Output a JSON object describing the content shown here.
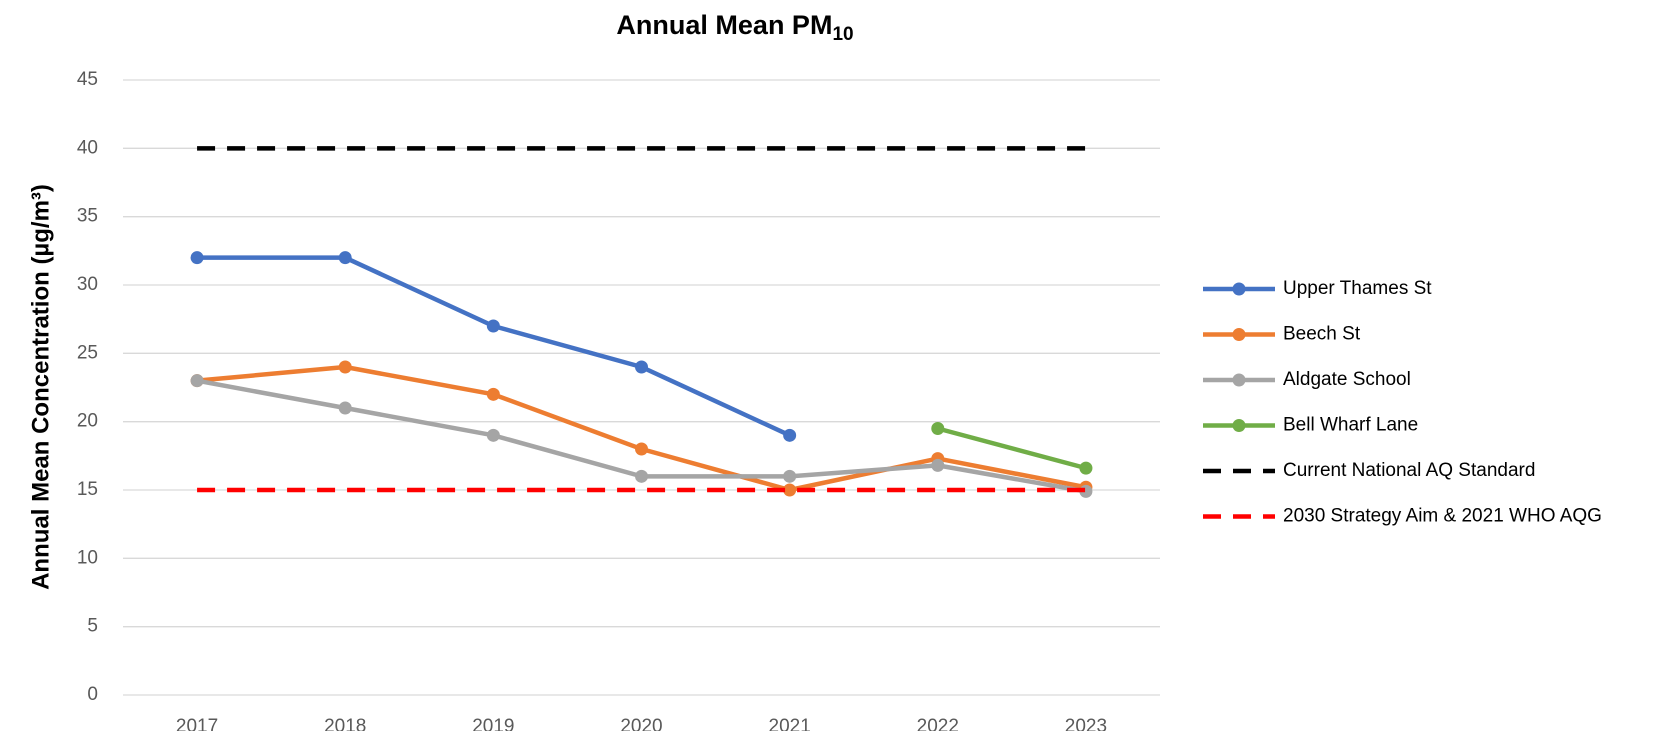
{
  "chart_data": {
    "type": "line",
    "title": "Annual Mean PM",
    "title_subscript": "10",
    "y_label": "Annual Mean Concentration (µg/m³)",
    "categories": [
      "2017",
      "2018",
      "2019",
      "2020",
      "2021",
      "2022",
      "2023"
    ],
    "series": [
      {
        "name": "Upper Thames St",
        "color": "#4472c4",
        "values": [
          32,
          32,
          27,
          24,
          19,
          null,
          null
        ]
      },
      {
        "name": "Beech St",
        "color": "#ed7d31",
        "values": [
          23,
          24,
          22,
          18,
          15,
          17.3,
          15.2
        ]
      },
      {
        "name": "Aldgate School",
        "color": "#a5a5a5",
        "values": [
          23,
          21,
          19,
          16,
          16,
          16.8,
          14.9
        ]
      },
      {
        "name": "Bell Wharf Lane",
        "color": "#70ad47",
        "values": [
          null,
          null,
          null,
          null,
          null,
          19.5,
          16.6
        ]
      },
      {
        "name": "Current National AQ Standard",
        "color": "#000000",
        "dashed": true,
        "values": [
          40,
          40,
          40,
          40,
          40,
          40,
          40
        ]
      },
      {
        "name": "2030 Strategy Aim & 2021 WHO AQG",
        "color": "#ff0000",
        "dashed": true,
        "values": [
          15,
          15,
          15,
          15,
          15,
          15,
          15
        ]
      }
    ],
    "ylim": [
      0,
      45
    ],
    "yticks": [
      0,
      5,
      10,
      15,
      20,
      25,
      30,
      35,
      40,
      45
    ],
    "grid": true,
    "legend": "right"
  }
}
